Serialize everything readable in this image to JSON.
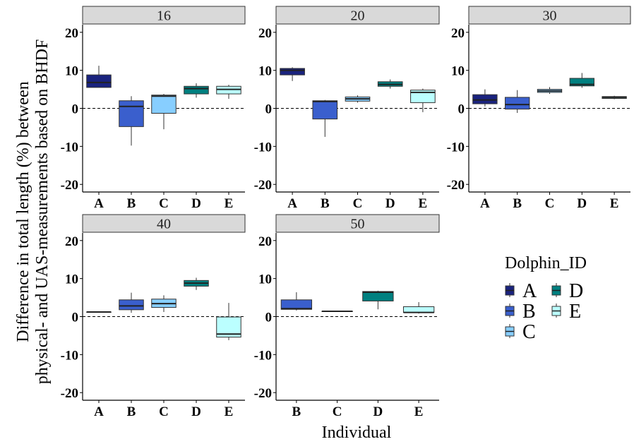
{
  "chart_data": {
    "type": "boxplot",
    "xlabel": "Individual",
    "ylabel_lines": [
      "Difference in total length (%) between",
      "physical- and UAS-measurements based on BHDF"
    ],
    "ylim": [
      -22,
      22
    ],
    "yticks": [
      -20,
      -10,
      0,
      10,
      20
    ],
    "reference_line": 0,
    "legend": {
      "title": "Dolphin_ID",
      "placement": "right",
      "entries": [
        {
          "id": "A",
          "label": "A",
          "color": "#1a237e"
        },
        {
          "id": "B",
          "label": "B",
          "color": "#3a5fcd"
        },
        {
          "id": "C",
          "label": "C",
          "color": "#87ceff"
        },
        {
          "id": "D",
          "label": "D",
          "color": "#008080"
        },
        {
          "id": "E",
          "label": "E",
          "color": "#bbffff"
        }
      ]
    },
    "panels": [
      {
        "strip": "16",
        "categories": [
          "A",
          "B",
          "C",
          "D",
          "E"
        ],
        "boxes": [
          {
            "id": "A",
            "min": 5.5,
            "q1": 5.5,
            "median": 6.8,
            "q3": 8.8,
            "max": 11.2
          },
          {
            "id": "B",
            "min": -9.8,
            "q1": -4.8,
            "median": 0.5,
            "q3": 2.0,
            "max": 3.2
          },
          {
            "id": "C",
            "min": -5.5,
            "q1": -1.3,
            "median": 3.2,
            "q3": 3.5,
            "max": 3.8
          },
          {
            "id": "D",
            "min": 2.8,
            "q1": 3.8,
            "median": 5.2,
            "q3": 5.8,
            "max": 6.6
          },
          {
            "id": "E",
            "min": 2.5,
            "q1": 3.8,
            "median": 5.0,
            "q3": 5.8,
            "max": 6.2
          }
        ]
      },
      {
        "strip": "20",
        "categories": [
          "A",
          "B",
          "C",
          "D",
          "E"
        ],
        "boxes": [
          {
            "id": "A",
            "min": 7.2,
            "q1": 8.8,
            "median": 10.0,
            "q3": 10.5,
            "max": 10.8
          },
          {
            "id": "B",
            "min": -7.5,
            "q1": -2.8,
            "median": 1.8,
            "q3": 2.0,
            "max": 2.2
          },
          {
            "id": "C",
            "min": 1.5,
            "q1": 1.9,
            "median": 2.5,
            "q3": 3.0,
            "max": 3.4
          },
          {
            "id": "D",
            "min": 5.2,
            "q1": 5.8,
            "median": 6.3,
            "q3": 7.0,
            "max": 7.6
          },
          {
            "id": "E",
            "min": -1.0,
            "q1": 1.5,
            "median": 4.2,
            "q3": 4.8,
            "max": 5.2
          }
        ]
      },
      {
        "strip": "30",
        "categories": [
          "A",
          "B",
          "C",
          "D",
          "E"
        ],
        "boxes": [
          {
            "id": "A",
            "min": 0.5,
            "q1": 1.2,
            "median": 2.2,
            "q3": 3.6,
            "max": 5.0
          },
          {
            "id": "B",
            "min": -1.2,
            "q1": -0.2,
            "median": 1.0,
            "q3": 2.9,
            "max": 4.8
          },
          {
            "id": "C",
            "min": 3.8,
            "q1": 4.2,
            "median": 4.6,
            "q3": 5.0,
            "max": 5.6
          },
          {
            "id": "D",
            "min": 5.4,
            "q1": 5.9,
            "median": 6.3,
            "q3": 7.9,
            "max": 9.3
          },
          {
            "id": "E",
            "min": 2.4,
            "q1": 2.6,
            "median": 2.9,
            "q3": 3.1,
            "max": 3.3
          }
        ]
      },
      {
        "strip": "40",
        "categories": [
          "A",
          "B",
          "C",
          "D",
          "E"
        ],
        "boxes": [
          {
            "id": "A",
            "min": 1.2,
            "q1": 1.2,
            "median": 1.2,
            "q3": 1.2,
            "max": 1.2
          },
          {
            "id": "B",
            "min": 1.0,
            "q1": 1.8,
            "median": 2.8,
            "q3": 4.4,
            "max": 6.3
          },
          {
            "id": "C",
            "min": 1.2,
            "q1": 2.4,
            "median": 3.4,
            "q3": 4.6,
            "max": 5.6
          },
          {
            "id": "D",
            "min": 7.0,
            "q1": 8.0,
            "median": 8.8,
            "q3": 9.5,
            "max": 10.2
          },
          {
            "id": "E",
            "min": -6.2,
            "q1": -5.4,
            "median": -4.6,
            "q3": -0.1,
            "max": 3.6
          }
        ]
      },
      {
        "strip": "50",
        "categories": [
          "B",
          "C",
          "D",
          "E"
        ],
        "boxes": [
          {
            "id": "B",
            "min": 1.6,
            "q1": 1.9,
            "median": 2.1,
            "q3": 4.4,
            "max": 6.4
          },
          {
            "id": "C",
            "min": 1.4,
            "q1": 1.4,
            "median": 1.4,
            "q3": 1.4,
            "max": 1.4
          },
          {
            "id": "D",
            "min": 1.9,
            "q1": 4.1,
            "median": 6.4,
            "q3": 6.6,
            "max": 6.8
          },
          {
            "id": "E",
            "min": 0.8,
            "q1": 1.1,
            "median": 1.1,
            "q3": 2.6,
            "max": 3.8
          }
        ]
      }
    ]
  }
}
